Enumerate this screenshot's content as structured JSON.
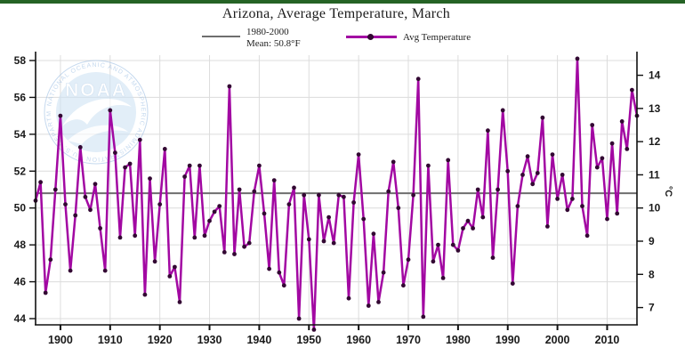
{
  "page": {
    "top_bar_color": "#256325"
  },
  "chart_data": {
    "type": "line",
    "title": "Arizona, Average Temperature, March",
    "legend": {
      "mean_label_line1": "1980-2000",
      "mean_label_line2": "Mean: 50.8°F",
      "series_label": "Avg Temperature"
    },
    "mean_value_f": 50.8,
    "x_start": 1895,
    "x_end": 2016,
    "x_ticks": [
      1900,
      1910,
      1920,
      1930,
      1940,
      1950,
      1960,
      1970,
      1980,
      1990,
      2000,
      2010
    ],
    "y_ticks_f": [
      44,
      46,
      48,
      50,
      52,
      54,
      56,
      58
    ],
    "y_ticks_c": [
      7,
      8,
      9,
      10,
      11,
      12,
      13,
      14
    ],
    "ylabel_left": "°F",
    "ylabel_right": "°C",
    "grid": true,
    "legend_position": "top",
    "values_f": [
      50.4,
      51.4,
      45.4,
      47.2,
      51.0,
      55.0,
      50.2,
      46.6,
      49.6,
      53.3,
      50.6,
      49.9,
      51.3,
      48.9,
      46.6,
      55.3,
      53.0,
      48.4,
      52.2,
      52.4,
      48.5,
      53.7,
      45.3,
      51.6,
      47.1,
      50.2,
      53.2,
      46.3,
      46.8,
      44.9,
      51.7,
      52.3,
      48.4,
      52.3,
      48.5,
      49.3,
      49.8,
      50.1,
      47.6,
      56.6,
      47.5,
      51.0,
      47.9,
      48.1,
      50.9,
      52.3,
      49.7,
      46.7,
      51.5,
      46.5,
      45.8,
      50.2,
      51.1,
      44.0,
      50.7,
      48.3,
      43.4,
      50.7,
      48.2,
      49.5,
      48.1,
      50.7,
      50.6,
      45.1,
      50.3,
      52.9,
      49.4,
      44.7,
      48.6,
      44.9,
      46.5,
      50.9,
      52.5,
      50.0,
      45.8,
      47.2,
      50.7,
      57.0,
      44.1,
      52.3,
      47.1,
      48.0,
      46.2,
      52.6,
      48.0,
      47.7,
      48.9,
      49.3,
      48.9,
      51.0,
      49.5,
      54.2,
      47.3,
      51.0,
      55.3,
      52.0,
      45.9,
      50.1,
      51.8,
      52.8,
      51.3,
      51.9,
      54.9,
      49.0,
      52.9,
      50.5,
      51.8,
      49.9,
      50.5,
      58.1,
      50.1,
      48.5,
      54.5,
      52.2,
      52.7,
      49.4,
      53.5,
      49.7,
      54.7,
      53.2,
      56.4,
      55.0
    ],
    "colors": {
      "series": "#A208A2",
      "marker": "#330833",
      "mean_line": "#6E6E6E",
      "grid": "#DCDCDC",
      "axis": "#111111",
      "text": "#1A1A1A"
    },
    "watermark": {
      "label": "NOAA",
      "ring_text": "NATIONAL OCEANIC AND ATMOSPHERIC ADMINISTRATION • U.S. DEPARTMENT OF COMMERCE",
      "disc_color": "#CFE3F4",
      "ring_color": "#9DBFE4"
    }
  }
}
